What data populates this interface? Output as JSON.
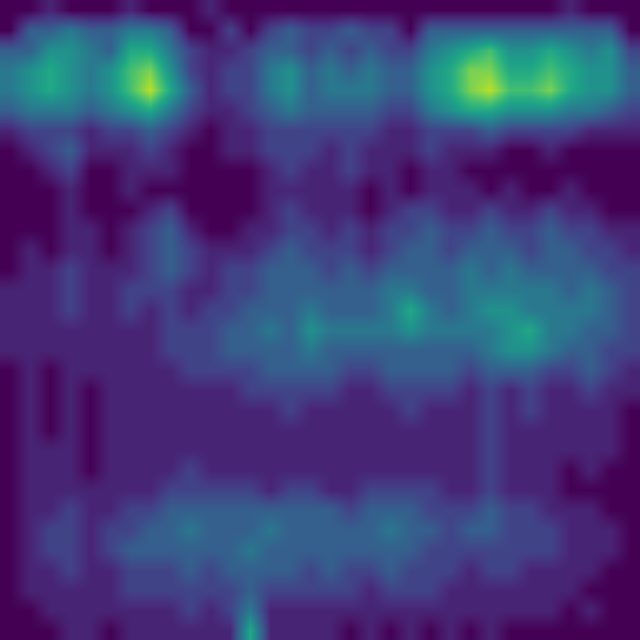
{
  "chart_data": {
    "type": "heatmap",
    "color": "Viridis",
    "tick_labels": false,
    "grid": false,
    "zlim": [
      0,
      10
    ],
    "cells": [
      [
        0,
        0,
        1,
        0,
        0,
        0,
        1,
        0,
        0,
        0,
        1,
        0,
        0,
        0,
        0,
        0,
        0,
        0,
        0,
        0,
        0,
        0,
        0,
        0,
        0,
        0,
        0,
        0,
        1,
        0,
        0,
        0
      ],
      [
        0,
        3,
        3,
        4,
        3,
        3,
        4,
        4,
        3,
        0,
        0,
        2,
        0,
        2,
        3,
        2,
        2,
        3,
        2,
        2,
        0,
        3,
        3,
        3,
        3,
        3,
        3,
        3,
        3,
        3,
        3,
        0
      ],
      [
        3,
        3,
        5,
        5,
        4,
        3,
        6,
        6,
        4,
        2,
        1,
        1,
        2,
        3,
        3,
        2,
        3,
        2,
        3,
        2,
        2,
        4,
        5,
        6,
        7,
        5,
        5,
        6,
        5,
        4,
        5,
        2
      ],
      [
        4,
        5,
        6,
        5,
        4,
        5,
        7,
        8,
        5,
        2,
        1,
        2,
        2,
        4,
        5,
        3,
        4,
        3,
        4,
        3,
        3,
        5,
        6,
        8,
        8,
        6,
        6,
        7,
        6,
        5,
        5,
        3
      ],
      [
        4,
        5,
        6,
        5,
        4,
        5,
        7,
        9,
        6,
        3,
        1,
        2,
        2,
        4,
        5,
        3,
        4,
        4,
        4,
        3,
        3,
        5,
        6,
        8,
        9,
        7,
        7,
        8,
        6,
        5,
        5,
        3
      ],
      [
        3,
        4,
        4,
        4,
        3,
        4,
        5,
        6,
        4,
        2,
        1,
        1,
        2,
        3,
        4,
        3,
        3,
        3,
        3,
        2,
        2,
        4,
        5,
        6,
        6,
        5,
        5,
        5,
        4,
        4,
        3,
        2
      ],
      [
        1,
        2,
        2,
        2,
        1,
        2,
        2,
        3,
        2,
        1,
        0,
        1,
        1,
        2,
        2,
        2,
        2,
        2,
        2,
        1,
        1,
        2,
        2,
        2,
        3,
        2,
        2,
        2,
        2,
        1,
        1,
        1
      ],
      [
        0,
        1,
        2,
        3,
        1,
        1,
        1,
        2,
        1,
        0,
        0,
        1,
        1,
        2,
        2,
        2,
        1,
        2,
        1,
        1,
        1,
        2,
        1,
        1,
        1,
        0,
        0,
        1,
        0,
        0,
        0,
        0
      ],
      [
        0,
        0,
        1,
        2,
        0,
        0,
        1,
        1,
        1,
        0,
        0,
        0,
        0,
        1,
        2,
        1,
        1,
        2,
        1,
        1,
        0,
        1,
        1,
        0,
        0,
        0,
        0,
        0,
        0,
        0,
        0,
        0
      ],
      [
        0,
        0,
        0,
        1,
        0,
        0,
        1,
        0,
        0,
        0,
        0,
        0,
        0,
        1,
        1,
        1,
        1,
        1,
        0,
        1,
        0,
        1,
        1,
        1,
        0,
        1,
        0,
        0,
        1,
        0,
        0,
        0
      ],
      [
        0,
        0,
        0,
        1,
        0,
        0,
        0,
        1,
        2,
        0,
        0,
        0,
        0,
        1,
        2,
        1,
        1,
        1,
        0,
        1,
        2,
        2,
        1,
        1,
        2,
        1,
        1,
        2,
        1,
        1,
        0,
        0
      ],
      [
        0,
        0,
        0,
        1,
        1,
        0,
        1,
        2,
        3,
        1,
        0,
        0,
        1,
        1,
        2,
        2,
        1,
        2,
        1,
        2,
        2,
        3,
        2,
        2,
        3,
        2,
        2,
        3,
        2,
        2,
        1,
        1
      ],
      [
        0,
        1,
        0,
        1,
        1,
        0,
        1,
        2,
        3,
        2,
        1,
        1,
        1,
        2,
        3,
        2,
        2,
        2,
        1,
        2,
        3,
        3,
        2,
        3,
        3,
        3,
        2,
        3,
        3,
        2,
        2,
        1
      ],
      [
        0,
        1,
        1,
        2,
        1,
        1,
        1,
        2,
        3,
        2,
        1,
        2,
        2,
        3,
        3,
        3,
        2,
        3,
        2,
        3,
        3,
        3,
        3,
        4,
        3,
        4,
        3,
        3,
        3,
        3,
        2,
        2
      ],
      [
        1,
        1,
        1,
        2,
        1,
        1,
        2,
        2,
        2,
        1,
        1,
        2,
        2,
        3,
        3,
        3,
        3,
        3,
        3,
        4,
        4,
        3,
        3,
        4,
        4,
        4,
        4,
        4,
        3,
        4,
        3,
        2
      ],
      [
        1,
        1,
        1,
        2,
        1,
        1,
        2,
        1,
        2,
        1,
        2,
        2,
        3,
        3,
        3,
        4,
        3,
        3,
        3,
        4,
        6,
        4,
        3,
        4,
        5,
        5,
        4,
        4,
        4,
        4,
        3,
        2
      ],
      [
        1,
        1,
        1,
        1,
        1,
        1,
        1,
        1,
        2,
        2,
        2,
        3,
        3,
        4,
        3,
        5,
        4,
        4,
        4,
        4,
        5,
        4,
        4,
        4,
        4,
        5,
        6,
        4,
        4,
        3,
        3,
        2
      ],
      [
        1,
        1,
        1,
        1,
        1,
        1,
        1,
        1,
        2,
        2,
        2,
        3,
        3,
        3,
        3,
        4,
        3,
        3,
        3,
        3,
        3,
        3,
        3,
        3,
        4,
        5,
        5,
        4,
        3,
        3,
        2,
        2
      ],
      [
        0,
        1,
        0,
        1,
        1,
        1,
        1,
        1,
        1,
        2,
        2,
        2,
        2,
        3,
        3,
        3,
        3,
        2,
        2,
        3,
        3,
        3,
        3,
        2,
        3,
        3,
        3,
        2,
        2,
        3,
        2,
        1
      ],
      [
        0,
        1,
        0,
        1,
        0,
        1,
        1,
        1,
        1,
        1,
        1,
        1,
        2,
        2,
        2,
        2,
        2,
        1,
        1,
        2,
        2,
        2,
        2,
        1,
        2,
        1,
        2,
        1,
        1,
        2,
        1,
        1
      ],
      [
        0,
        1,
        0,
        1,
        0,
        1,
        1,
        1,
        1,
        1,
        1,
        1,
        1,
        1,
        2,
        1,
        1,
        1,
        1,
        1,
        2,
        1,
        1,
        1,
        2,
        1,
        2,
        1,
        1,
        1,
        1,
        0
      ],
      [
        0,
        1,
        0,
        1,
        0,
        1,
        1,
        1,
        1,
        1,
        1,
        1,
        1,
        1,
        1,
        1,
        1,
        1,
        1,
        1,
        1,
        1,
        1,
        1,
        2,
        1,
        1,
        1,
        1,
        1,
        1,
        0
      ],
      [
        0,
        1,
        1,
        1,
        0,
        1,
        1,
        1,
        1,
        1,
        1,
        1,
        1,
        1,
        1,
        1,
        1,
        1,
        1,
        1,
        1,
        1,
        1,
        1,
        2,
        1,
        1,
        1,
        1,
        1,
        1,
        0
      ],
      [
        0,
        1,
        1,
        1,
        0,
        1,
        1,
        1,
        1,
        2,
        1,
        1,
        1,
        1,
        1,
        1,
        1,
        1,
        1,
        1,
        1,
        1,
        1,
        1,
        2,
        1,
        1,
        1,
        0,
        1,
        0,
        0
      ],
      [
        0,
        1,
        1,
        1,
        1,
        1,
        1,
        1,
        2,
        2,
        2,
        2,
        2,
        1,
        2,
        2,
        1,
        1,
        2,
        2,
        2,
        2,
        1,
        1,
        2,
        1,
        1,
        1,
        0,
        0,
        0,
        0
      ],
      [
        0,
        1,
        1,
        2,
        1,
        1,
        2,
        2,
        3,
        3,
        3,
        3,
        3,
        3,
        3,
        3,
        3,
        2,
        3,
        3,
        3,
        2,
        2,
        2,
        3,
        2,
        2,
        1,
        1,
        1,
        0,
        0
      ],
      [
        0,
        1,
        2,
        2,
        1,
        2,
        2,
        3,
        3,
        4,
        3,
        3,
        3,
        4,
        3,
        3,
        3,
        3,
        3,
        4,
        3,
        3,
        2,
        3,
        3,
        2,
        2,
        2,
        1,
        1,
        1,
        0
      ],
      [
        0,
        1,
        2,
        2,
        1,
        2,
        3,
        3,
        3,
        3,
        3,
        3,
        4,
        3,
        3,
        3,
        3,
        3,
        3,
        3,
        3,
        2,
        2,
        2,
        2,
        2,
        2,
        2,
        1,
        1,
        1,
        0
      ],
      [
        0,
        1,
        1,
        2,
        1,
        1,
        2,
        2,
        2,
        3,
        2,
        3,
        3,
        3,
        3,
        2,
        3,
        2,
        2,
        3,
        2,
        2,
        2,
        1,
        2,
        2,
        1,
        1,
        1,
        1,
        0,
        0
      ],
      [
        0,
        1,
        1,
        1,
        1,
        1,
        2,
        2,
        2,
        2,
        2,
        2,
        3,
        2,
        2,
        2,
        2,
        2,
        1,
        2,
        2,
        2,
        1,
        1,
        1,
        1,
        1,
        1,
        1,
        0,
        0,
        0
      ],
      [
        0,
        0,
        1,
        1,
        1,
        1,
        1,
        1,
        1,
        2,
        1,
        2,
        4,
        1,
        1,
        1,
        1,
        1,
        1,
        1,
        1,
        1,
        1,
        1,
        1,
        1,
        1,
        1,
        0,
        1,
        0,
        0
      ],
      [
        0,
        0,
        0,
        1,
        1,
        0,
        1,
        1,
        1,
        1,
        1,
        1,
        6,
        1,
        1,
        1,
        1,
        0,
        1,
        0,
        1,
        0,
        1,
        0,
        1,
        0,
        0,
        0,
        0,
        0,
        0,
        0
      ]
    ]
  }
}
